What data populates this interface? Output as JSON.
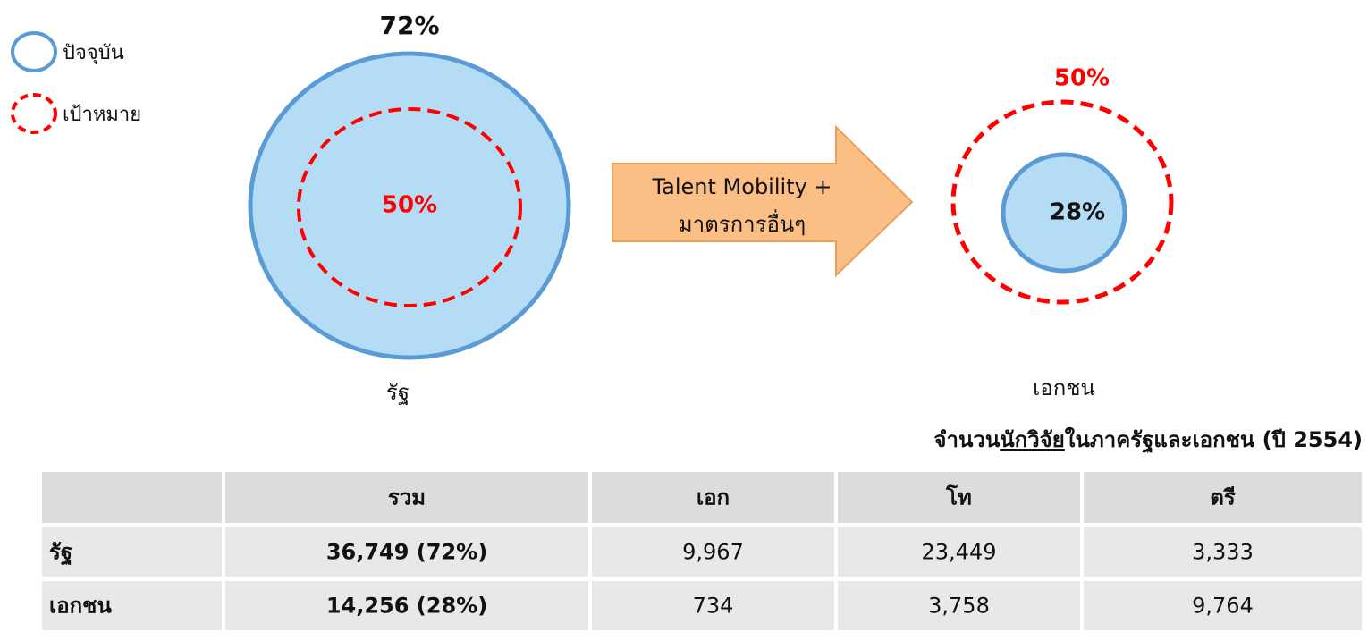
{
  "legend": [
    {
      "label": "ปัจจุบัน"
    },
    {
      "label": "เป้าหมาย"
    }
  ],
  "left": {
    "current": "72%",
    "target": "50%",
    "label": "รัฐ"
  },
  "arrow": {
    "line1": "Talent Mobility +",
    "line2": "มาตรการอื่นๆ"
  },
  "right": {
    "current": "28%",
    "target": "50%",
    "label": "เอกชน"
  },
  "table": {
    "title": {
      "before": "จำนวน",
      "underlined": "นักวิจัย",
      "after": "ในภาครัฐและเอกชน (ปี 2554)"
    },
    "header": [
      "รวม",
      "เอก",
      "โท",
      "ตรี"
    ],
    "rows": [
      [
        "รัฐ",
        "36,749 (72%)",
        "9,967",
        "23,449",
        "3,333"
      ],
      [
        "เอกชน",
        "14,256 (28%)",
        "734",
        "3,758",
        "9,764"
      ]
    ]
  }
}
